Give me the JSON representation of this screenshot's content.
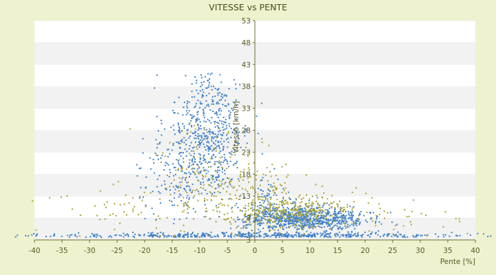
{
  "chart_data": {
    "type": "scatter",
    "title": "VITESSE vs PENTE",
    "xlabel": "Pente [%]",
    "ylabel": "Vitesse [km/h]",
    "xlim": [
      -40,
      40
    ],
    "ylim": [
      3,
      53
    ],
    "x_ticks": [
      "-40",
      "-35",
      "-30",
      "-25",
      "-20",
      "-15",
      "-10",
      "-5",
      "0",
      "5",
      "10",
      "15",
      "20",
      "25",
      "30",
      "35",
      "40"
    ],
    "y_ticks": [
      "3",
      "8",
      "13",
      "18",
      "23",
      "28",
      "33",
      "38",
      "43",
      "48",
      "53"
    ],
    "grid": "horizontal alternating bands",
    "legend": "none",
    "colors": {
      "series_blue": "#3d7fc9",
      "series_olive": "#a9a12c",
      "axis": "#5a5a22"
    },
    "series": [
      {
        "color": "#3d7fc9",
        "clusters": [
          {
            "xc": -10,
            "yc": 25,
            "sx": 3.2,
            "sy": 8,
            "n": 420
          },
          {
            "xc": -6,
            "yc": 28,
            "sx": 2.5,
            "sy": 6,
            "n": 180
          },
          {
            "xc": -8.5,
            "yc": 38,
            "sx": 1.0,
            "sy": 2,
            "n": 25
          },
          {
            "xc": -16,
            "yc": 17,
            "sx": 3,
            "sy": 5,
            "n": 80
          },
          {
            "xc": 8,
            "yc": 8,
            "sx": 5,
            "sy": 1.4,
            "n": 650
          },
          {
            "xc": 15,
            "yc": 7.5,
            "sx": 4,
            "sy": 1.2,
            "n": 160
          },
          {
            "xc": 2,
            "yc": 11,
            "sx": 1.8,
            "sy": 3,
            "n": 70
          },
          {
            "xc": 0,
            "yc": 4,
            "sx": 18,
            "sy": 0.4,
            "n": 480
          }
        ]
      },
      {
        "color": "#a9a12c",
        "clusters": [
          {
            "xc": -8,
            "yc": 17,
            "sx": 5,
            "sy": 6,
            "n": 180
          },
          {
            "xc": 7,
            "yc": 9.5,
            "sx": 6,
            "sy": 2,
            "n": 320
          },
          {
            "xc": -20,
            "yc": 10,
            "sx": 9,
            "sy": 3,
            "n": 60
          },
          {
            "xc": 25,
            "yc": 7,
            "sx": 10,
            "sy": 2,
            "n": 40
          },
          {
            "xc": 2,
            "yc": 14,
            "sx": 3,
            "sy": 4,
            "n": 70
          }
        ]
      }
    ]
  }
}
